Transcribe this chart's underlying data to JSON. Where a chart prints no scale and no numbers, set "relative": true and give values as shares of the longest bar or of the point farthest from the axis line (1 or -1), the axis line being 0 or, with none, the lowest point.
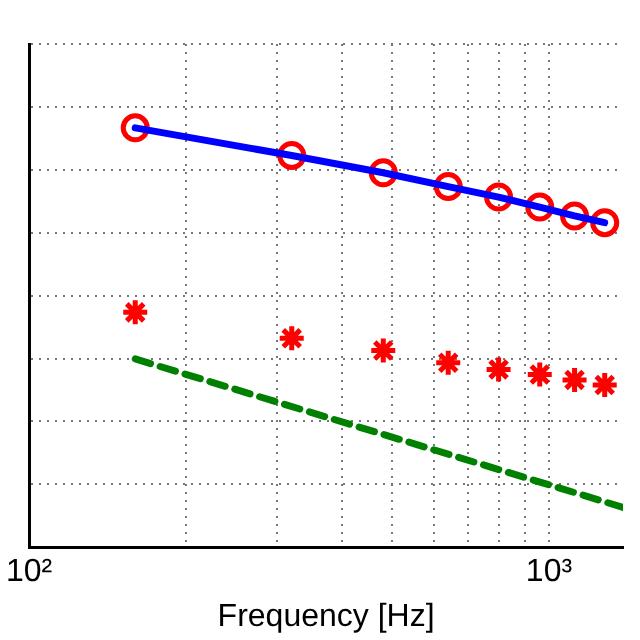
{
  "chart_data": {
    "type": "line",
    "xlabel": "Frequency [Hz]",
    "relative": true,
    "log": "x",
    "grid": true,
    "legend": false,
    "xlim": [
      100,
      1388
    ],
    "xticks": [
      {
        "value": 100,
        "label": "10²"
      },
      {
        "value": 200,
        "label": null
      },
      {
        "value": 300,
        "label": null
      },
      {
        "value": 400,
        "label": null
      },
      {
        "value": 500,
        "label": null
      },
      {
        "value": 600,
        "label": null
      },
      {
        "value": 700,
        "label": null
      },
      {
        "value": 800,
        "label": null
      },
      {
        "value": 900,
        "label": null
      },
      {
        "value": 1000,
        "label": "10³"
      }
    ],
    "series": [
      {
        "color": "#0000ff",
        "x": [
          160,
          320,
          480,
          640,
          800,
          960,
          1120,
          1280
        ],
        "values": [
          1,
          0.934,
          0.893,
          0.86,
          0.835,
          0.811,
          0.79,
          0.774
        ],
        "marker": "none",
        "line_style": "solid"
      },
      {
        "type": "scatter",
        "color": "#ff0000",
        "x": [
          160,
          320,
          480,
          640,
          800,
          960,
          1120,
          1280
        ],
        "values": [
          1,
          0.934,
          0.893,
          0.86,
          0.835,
          0.811,
          0.79,
          0.774
        ],
        "marker": "circle"
      },
      {
        "type": "scatter",
        "color": "#ff0000",
        "x": [
          160,
          320,
          480,
          640,
          800,
          960,
          1120,
          1280
        ],
        "values": [
          0.56,
          0.498,
          0.469,
          0.44,
          0.424,
          0.412,
          0.399,
          0.387
        ],
        "marker": "cross"
      },
      {
        "color": "#008000",
        "x": [
          160,
          1388
        ],
        "values": [
          0.449,
          0.095
        ],
        "marker": "none",
        "line_style": "dashed"
      }
    ]
  }
}
